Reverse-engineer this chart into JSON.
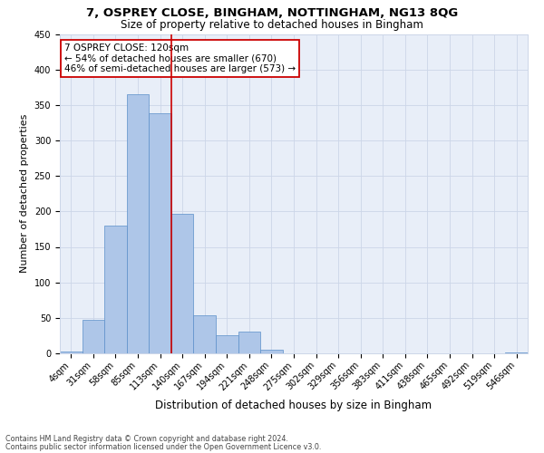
{
  "title1": "7, OSPREY CLOSE, BINGHAM, NOTTINGHAM, NG13 8QG",
  "title2": "Size of property relative to detached houses in Bingham",
  "xlabel": "Distribution of detached houses by size in Bingham",
  "ylabel": "Number of detached properties",
  "footer1": "Contains HM Land Registry data © Crown copyright and database right 2024.",
  "footer2": "Contains public sector information licensed under the Open Government Licence v3.0.",
  "annotation_line1": "7 OSPREY CLOSE: 120sqm",
  "annotation_line2": "← 54% of detached houses are smaller (670)",
  "annotation_line3": "46% of semi-detached houses are larger (573) →",
  "bar_categories": [
    "4sqm",
    "31sqm",
    "58sqm",
    "85sqm",
    "113sqm",
    "140sqm",
    "167sqm",
    "194sqm",
    "221sqm",
    "248sqm",
    "275sqm",
    "302sqm",
    "329sqm",
    "356sqm",
    "383sqm",
    "411sqm",
    "438sqm",
    "465sqm",
    "492sqm",
    "519sqm",
    "546sqm"
  ],
  "bar_values": [
    2,
    47,
    180,
    365,
    338,
    197,
    54,
    25,
    31,
    5,
    0,
    0,
    0,
    0,
    0,
    0,
    0,
    0,
    0,
    0,
    1
  ],
  "bar_color": "#aec6e8",
  "bar_edge_color": "#5b8fc9",
  "vline_x": 4.5,
  "vline_color": "#cc0000",
  "ylim": [
    0,
    450
  ],
  "yticks": [
    0,
    50,
    100,
    150,
    200,
    250,
    300,
    350,
    400,
    450
  ],
  "grid_color": "#ccd6e8",
  "bg_color": "#e8eef8",
  "annotation_box_color": "#ffffff",
  "annotation_box_edge": "#cc0000",
  "title1_fontsize": 9.5,
  "title2_fontsize": 8.5,
  "xlabel_fontsize": 8.5,
  "ylabel_fontsize": 8,
  "tick_fontsize": 7,
  "annotation_fontsize": 7.5,
  "footer_fontsize": 5.8
}
